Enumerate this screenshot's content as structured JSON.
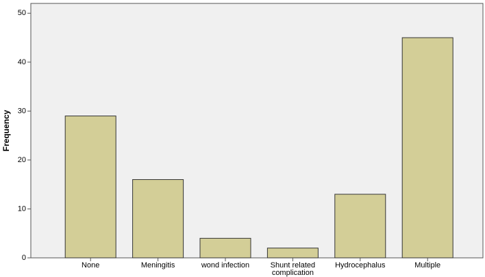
{
  "chart_data": {
    "type": "bar",
    "y_label": "Frequency",
    "categories": [
      "None",
      "Meningitis",
      "wond infection",
      "Shunt related complication",
      "Hydrocephalus",
      "Multiple"
    ],
    "values": [
      29,
      16,
      4,
      2,
      13,
      45
    ],
    "color": "#d3ce97",
    "ylim": [
      0,
      52
    ],
    "yticks": [
      0,
      10,
      20,
      30,
      40,
      50
    ]
  }
}
